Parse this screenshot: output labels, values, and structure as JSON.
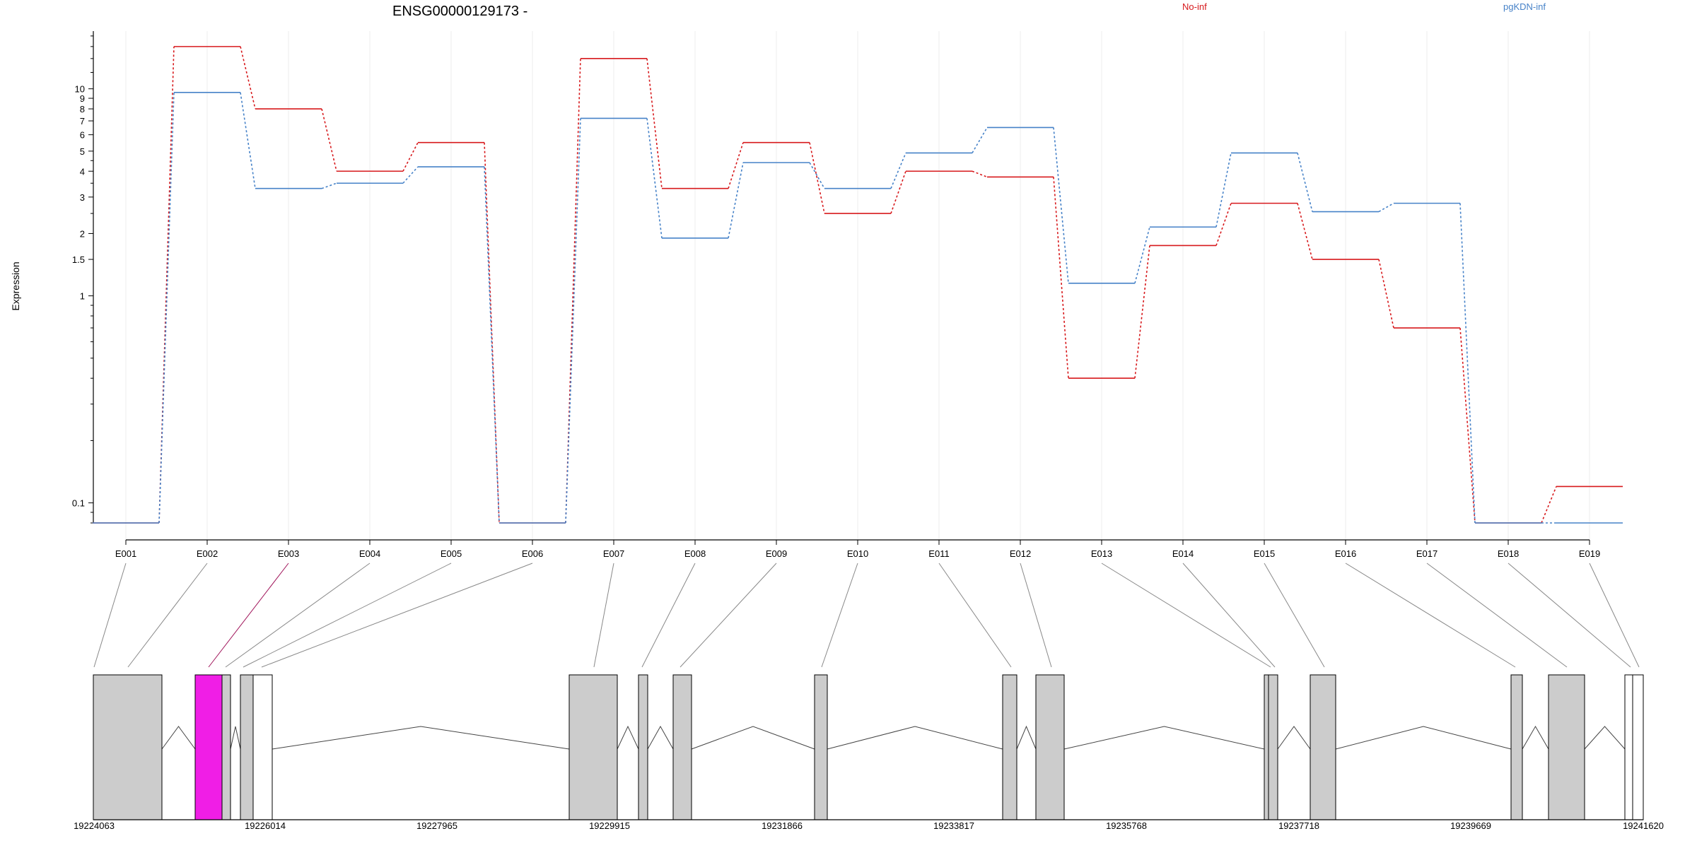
{
  "chart_data": {
    "type": "line",
    "title": "ENSG00000129173 -",
    "ylabel": "Expression",
    "yscale": "log",
    "ylim": [
      0.08,
      19
    ],
    "yticks": [
      {
        "value": 0.1,
        "label": "0.1"
      },
      {
        "value": 1,
        "label": "1"
      },
      {
        "value": 1.5,
        "label": "1.5"
      },
      {
        "value": 2,
        "label": "2"
      },
      {
        "value": 3,
        "label": "3"
      },
      {
        "value": 4,
        "label": "4"
      },
      {
        "value": 5,
        "label": "5"
      },
      {
        "value": 6,
        "label": "6"
      },
      {
        "value": 7,
        "label": "7"
      },
      {
        "value": 8,
        "label": "8"
      },
      {
        "value": 9,
        "label": "9"
      },
      {
        "value": 10,
        "label": "10"
      }
    ],
    "categories": [
      "E001",
      "E002",
      "E003",
      "E004",
      "E005",
      "E006",
      "E007",
      "E008",
      "E009",
      "E010",
      "E011",
      "E012",
      "E013",
      "E014",
      "E015",
      "E016",
      "E017",
      "E018",
      "E019"
    ],
    "series": [
      {
        "name": "No-inf",
        "color": "#d7191c",
        "values": [
          0.08,
          16.0,
          8.0,
          4.0,
          5.5,
          0.08,
          14.0,
          3.3,
          5.5,
          2.5,
          4.0,
          3.75,
          0.4,
          1.75,
          2.8,
          1.5,
          0.7,
          0.08,
          0.12
        ]
      },
      {
        "name": "pgKDN-inf",
        "color": "#4682c8",
        "values": [
          0.08,
          9.6,
          3.3,
          3.5,
          4.2,
          0.08,
          7.2,
          1.9,
          4.4,
          3.3,
          4.9,
          6.5,
          1.15,
          2.15,
          4.9,
          2.55,
          2.8,
          0.08,
          0.08
        ]
      }
    ],
    "grid": true,
    "legend_placement": "top-right",
    "gene_model": {
      "coordinate_ticks": [
        "19224063",
        "19226014",
        "19227965",
        "19229915",
        "19231866",
        "19233817",
        "19235768",
        "19237718",
        "19239669",
        "19241620"
      ],
      "highlight_color": "#f01ee6",
      "highlighted_exon": "E003",
      "exon_color": "#cccccc"
    }
  }
}
